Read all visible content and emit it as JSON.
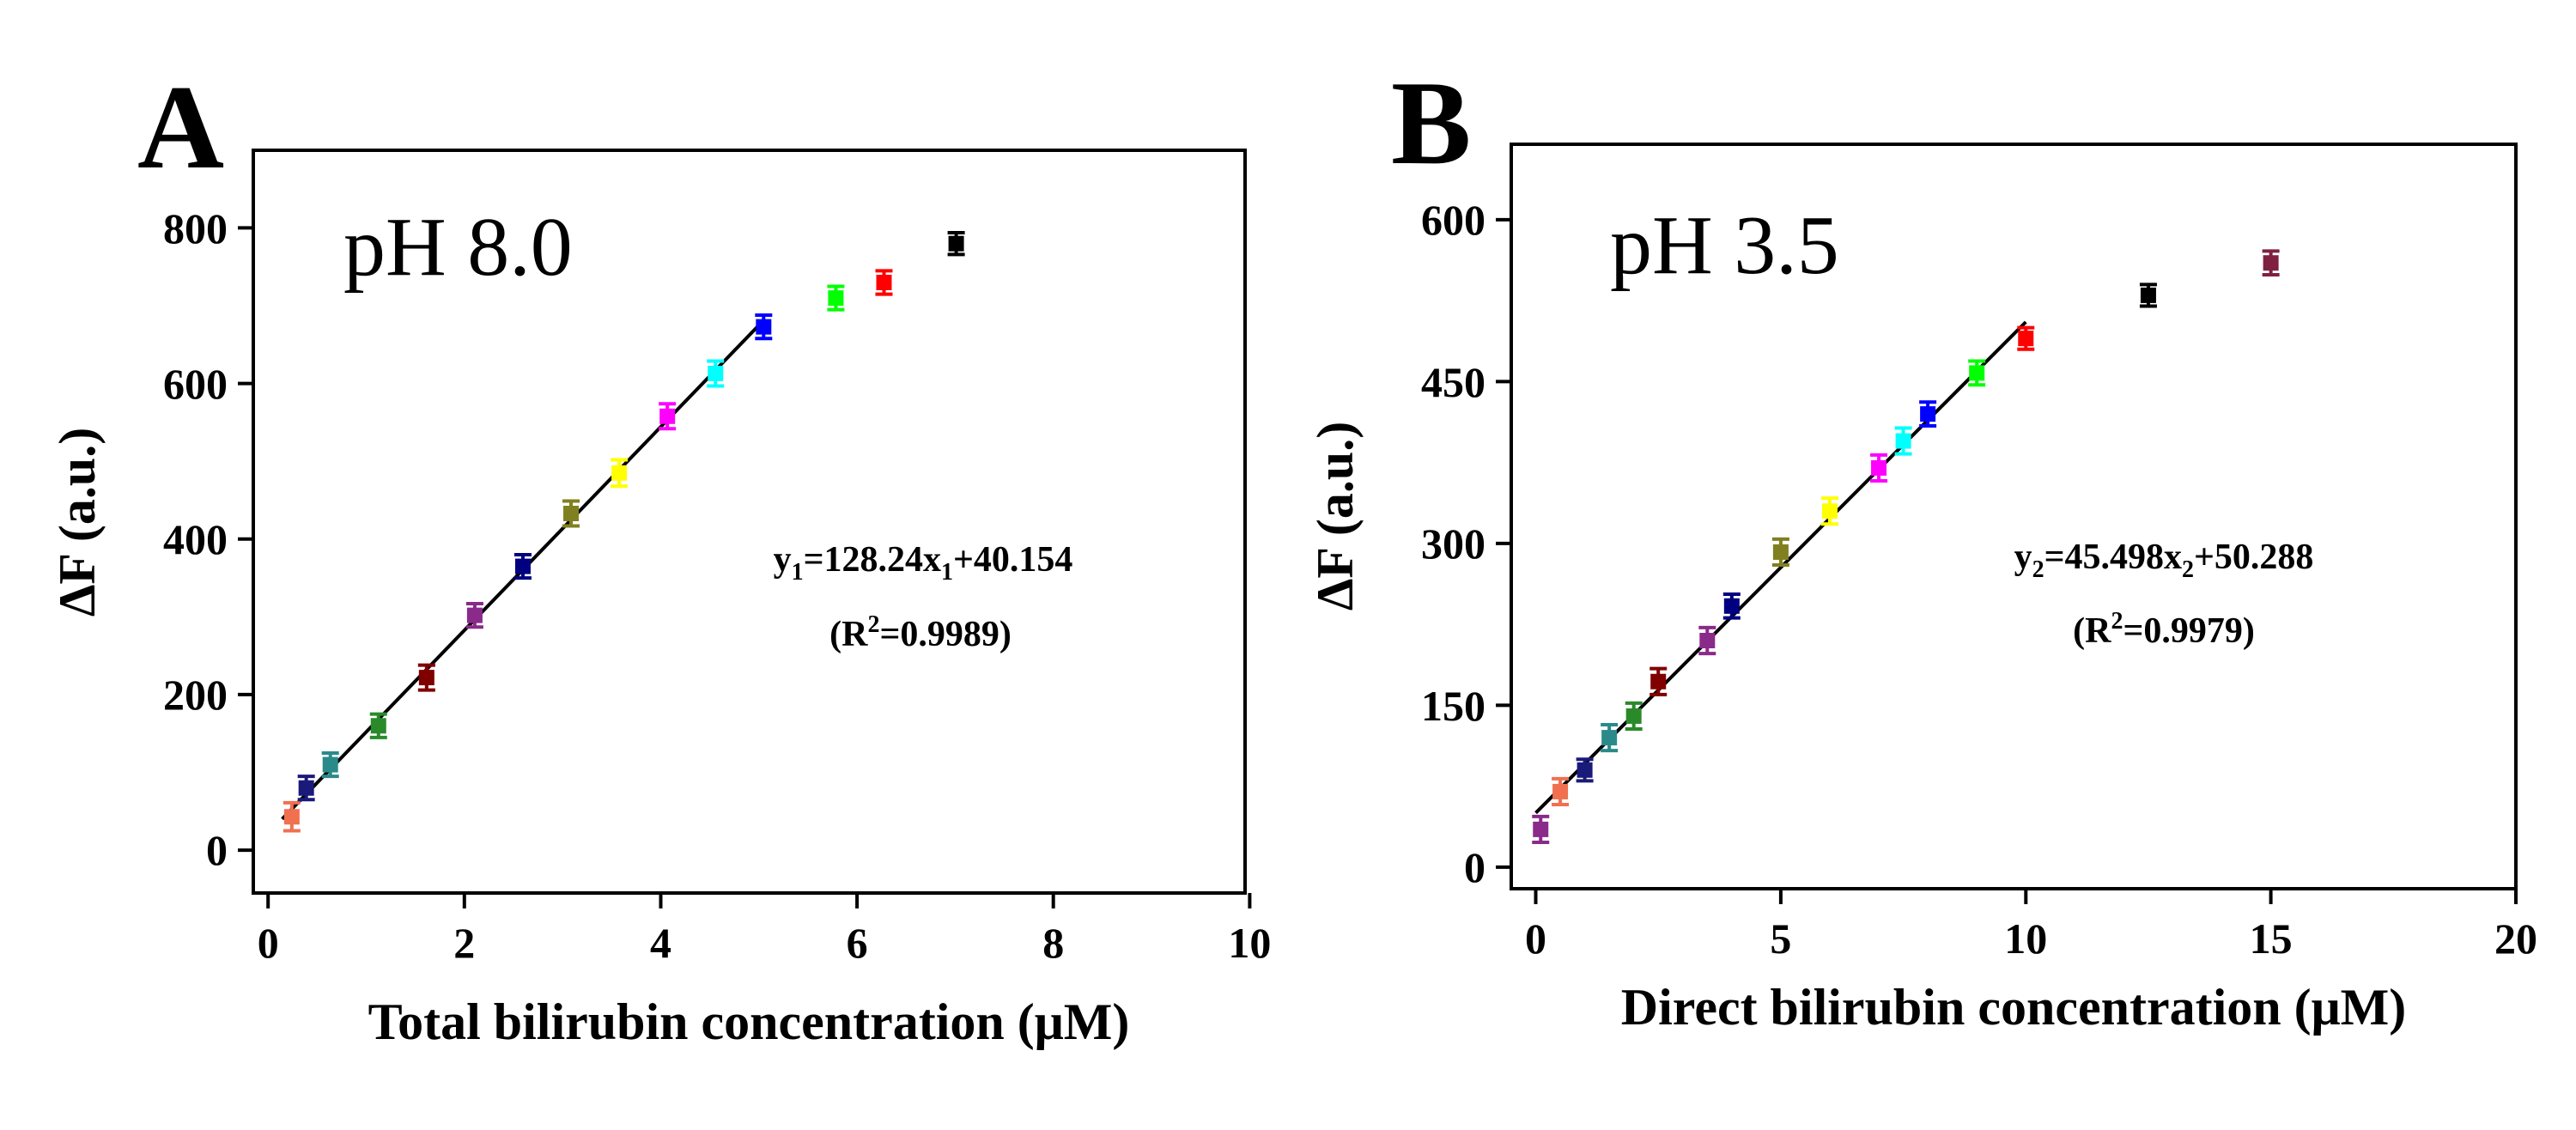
{
  "chart_data": [
    {
      "type": "scatter",
      "panel_label": "A",
      "annotation": "pH 8.0",
      "xlabel": "Total bilirubin concentration (μM)",
      "ylabel": "ΔF (a.u.)",
      "xlim": [
        -0.3,
        10
      ],
      "ylim": [
        -55,
        900
      ],
      "xticks": [
        0,
        2,
        4,
        6,
        8,
        10
      ],
      "yticks": [
        0,
        200,
        400,
        600,
        800
      ],
      "grid": false,
      "points": [
        {
          "x": 0.1,
          "y": 43,
          "err": 18,
          "color": "#f07050"
        },
        {
          "x": 0.25,
          "y": 80,
          "err": 15,
          "color": "#1a1a7a"
        },
        {
          "x": 0.5,
          "y": 110,
          "err": 15,
          "color": "#2a8a8a"
        },
        {
          "x": 1.0,
          "y": 160,
          "err": 15,
          "color": "#2a8a2a"
        },
        {
          "x": 1.5,
          "y": 222,
          "err": 16,
          "color": "#800000"
        },
        {
          "x": 2.0,
          "y": 302,
          "err": 15,
          "color": "#8a2a8a"
        },
        {
          "x": 2.5,
          "y": 365,
          "err": 15,
          "color": "#000080"
        },
        {
          "x": 3.0,
          "y": 433,
          "err": 16,
          "color": "#808020"
        },
        {
          "x": 3.5,
          "y": 485,
          "err": 17,
          "color": "#ffff00"
        },
        {
          "x": 4.0,
          "y": 558,
          "err": 16,
          "color": "#ff00ff"
        },
        {
          "x": 4.5,
          "y": 613,
          "err": 16,
          "color": "#00ffff"
        },
        {
          "x": 5.0,
          "y": 673,
          "err": 15,
          "color": "#0000ff"
        },
        {
          "x": 5.75,
          "y": 710,
          "err": 15,
          "color": "#00ff00"
        },
        {
          "x": 6.25,
          "y": 730,
          "err": 15,
          "color": "#ff0000"
        },
        {
          "x": 7.0,
          "y": 780,
          "err": 14,
          "color": "#000000"
        }
      ],
      "fit": {
        "slope": 128.24,
        "intercept": 40.154,
        "x_range": [
          0,
          5
        ],
        "equation": {
          "y": "y",
          "y_sub": "1",
          "eq_mid": "=128.24x",
          "x_sub": "1",
          "eq_end": "+40.154"
        },
        "r2": {
          "open": "(R",
          "sup": "2",
          "close": "=0.9989)"
        }
      }
    },
    {
      "type": "scatter",
      "panel_label": "B",
      "annotation": "pH 3.5",
      "xlabel": "Direct bilirubin concentration (μM)",
      "ylabel": "ΔF (a.u.)",
      "xlim": [
        -0.5,
        20
      ],
      "ylim": [
        -20,
        670
      ],
      "xticks": [
        0,
        5,
        10,
        15,
        20
      ],
      "yticks": [
        0,
        150,
        300,
        450,
        600
      ],
      "grid": false,
      "points": [
        {
          "x": 0.1,
          "y": 35,
          "err": 12,
          "color": "#8a2a8a"
        },
        {
          "x": 0.5,
          "y": 70,
          "err": 12,
          "color": "#f07050"
        },
        {
          "x": 1.0,
          "y": 90,
          "err": 10,
          "color": "#1a1a7a"
        },
        {
          "x": 1.5,
          "y": 120,
          "err": 12,
          "color": "#2a8a8a"
        },
        {
          "x": 2.0,
          "y": 140,
          "err": 12,
          "color": "#2a8a2a"
        },
        {
          "x": 2.5,
          "y": 172,
          "err": 12,
          "color": "#800000"
        },
        {
          "x": 3.5,
          "y": 210,
          "err": 12,
          "color": "#8a2a8a"
        },
        {
          "x": 4.0,
          "y": 242,
          "err": 11,
          "color": "#000080"
        },
        {
          "x": 5.0,
          "y": 292,
          "err": 12,
          "color": "#808020"
        },
        {
          "x": 6.0,
          "y": 330,
          "err": 12,
          "color": "#ffff00"
        },
        {
          "x": 7.0,
          "y": 370,
          "err": 12,
          "color": "#ff00ff"
        },
        {
          "x": 7.5,
          "y": 395,
          "err": 12,
          "color": "#00ffff"
        },
        {
          "x": 8.0,
          "y": 420,
          "err": 11,
          "color": "#0000ff"
        },
        {
          "x": 9.0,
          "y": 458,
          "err": 11,
          "color": "#00ff00"
        },
        {
          "x": 10.0,
          "y": 490,
          "err": 10,
          "color": "#ff0000"
        },
        {
          "x": 12.5,
          "y": 530,
          "err": 10,
          "color": "#000000"
        },
        {
          "x": 15.0,
          "y": 560,
          "err": 11,
          "color": "#802040"
        }
      ],
      "fit": {
        "slope": 45.498,
        "intercept": 50.288,
        "x_range": [
          0,
          10
        ],
        "equation": {
          "y": "y",
          "y_sub": "2",
          "eq_mid": "=45.498x",
          "x_sub": "2",
          "eq_end": "+50.288"
        },
        "r2": {
          "open": "(R",
          "sup": "2",
          "close": "=0.9979)"
        }
      }
    }
  ]
}
